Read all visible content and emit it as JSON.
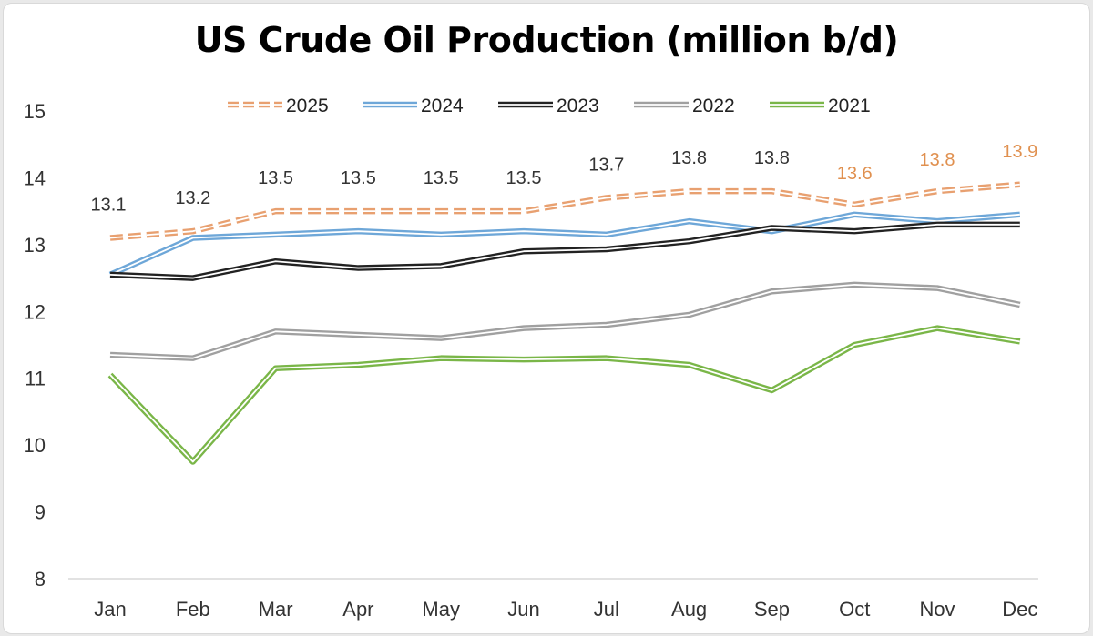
{
  "chart_data": {
    "type": "line",
    "title": "US Crude Oil Production (million b/d)",
    "categories": [
      "Jan",
      "Feb",
      "Mar",
      "Apr",
      "May",
      "Jun",
      "Jul",
      "Aug",
      "Sep",
      "Oct",
      "Nov",
      "Dec"
    ],
    "ylim": [
      8,
      15
    ],
    "yticks": [
      8,
      9,
      10,
      11,
      12,
      13,
      14,
      15
    ],
    "grid": false,
    "legend_position": "top",
    "series": [
      {
        "name": "2025",
        "color": "#e8a070",
        "dashed": true,
        "values": [
          13.1,
          13.2,
          13.5,
          13.5,
          13.5,
          13.5,
          13.7,
          13.8,
          13.8,
          13.6,
          13.8,
          13.9
        ],
        "labels": [
          "13.1",
          "13.2",
          "13.5",
          "13.5",
          "13.5",
          "13.5",
          "13.7",
          "13.8",
          "13.8",
          "13.6",
          "13.8",
          "13.9"
        ],
        "label_colors": [
          "#333333",
          "#333333",
          "#333333",
          "#333333",
          "#333333",
          "#333333",
          "#333333",
          "#333333",
          "#333333",
          "#e0904f",
          "#e0904f",
          "#e0904f"
        ]
      },
      {
        "name": "2024",
        "color": "#6ea7d8",
        "dashed": false,
        "values": [
          12.55,
          13.1,
          13.15,
          13.2,
          13.15,
          13.2,
          13.15,
          13.35,
          13.2,
          13.45,
          13.35,
          13.45
        ]
      },
      {
        "name": "2023",
        "color": "#222222",
        "dashed": false,
        "values": [
          12.55,
          12.5,
          12.75,
          12.65,
          12.68,
          12.9,
          12.93,
          13.05,
          13.25,
          13.2,
          13.3,
          13.3
        ]
      },
      {
        "name": "2022",
        "color": "#a0a0a0",
        "dashed": false,
        "values": [
          11.35,
          11.3,
          11.7,
          11.65,
          11.6,
          11.75,
          11.8,
          11.95,
          12.3,
          12.4,
          12.35,
          12.1
        ]
      },
      {
        "name": "2021",
        "color": "#7ab648",
        "dashed": false,
        "values": [
          11.05,
          9.75,
          11.15,
          11.2,
          11.3,
          11.28,
          11.3,
          11.2,
          10.82,
          11.5,
          11.75,
          11.55
        ]
      }
    ]
  }
}
